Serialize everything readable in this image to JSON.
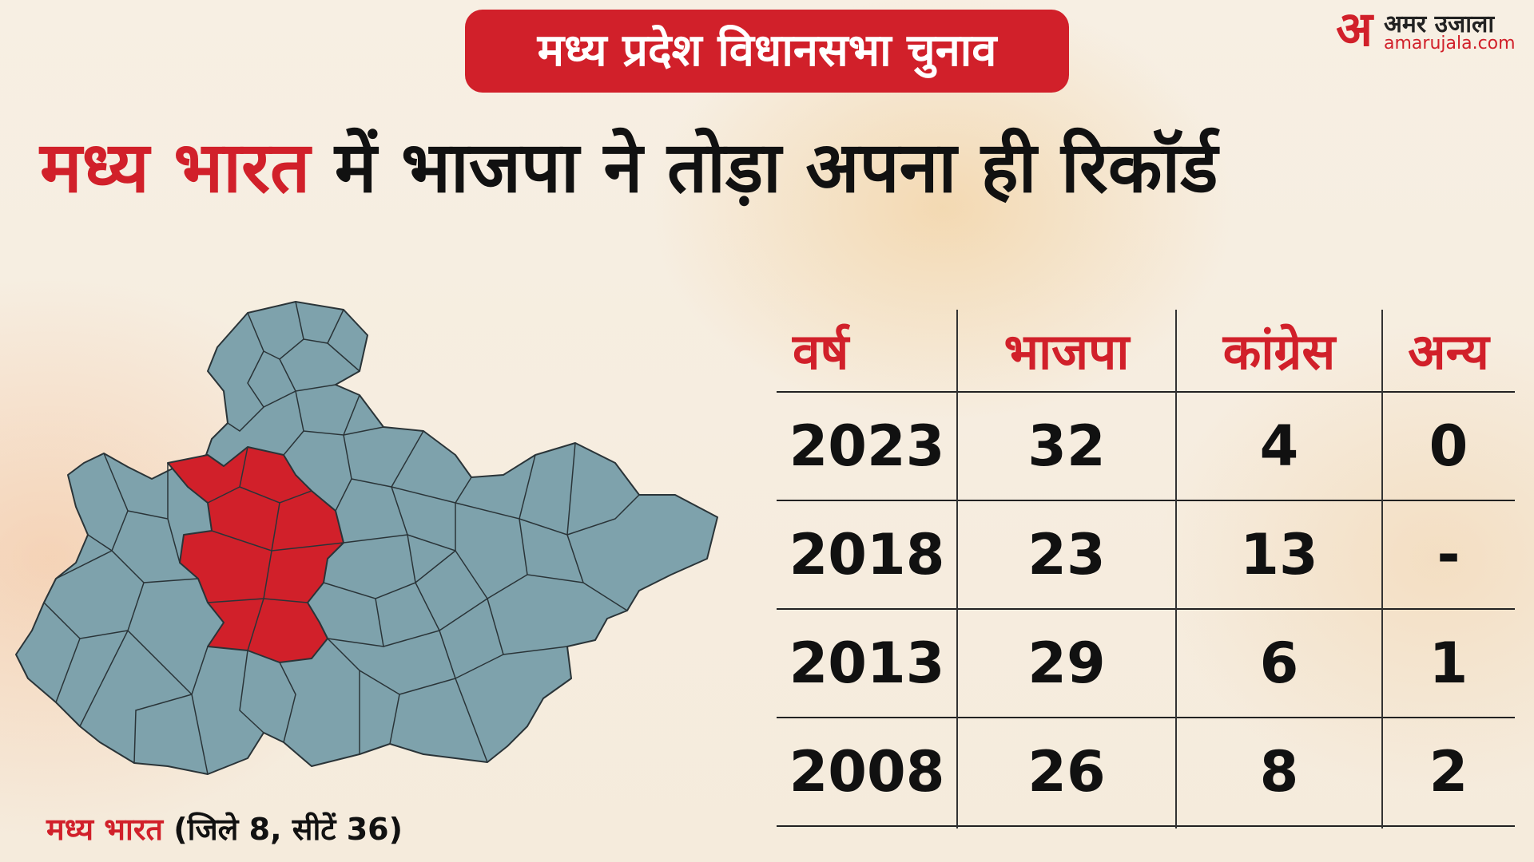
{
  "tag_title": "मध्य प्रदेश विधानसभा चुनाव",
  "logo": {
    "mark": "अ",
    "brand": "अमर उजाला",
    "url": "amarujala.com"
  },
  "headline": {
    "highlight": "मध्य भारत",
    "rest": " में भाजपा ने तोड़ा अपना ही रिकॉर्ड"
  },
  "colors": {
    "accent": "#d1202a",
    "map_other": "#7ea2ac",
    "map_region": "#d1202a",
    "background": "#f6eddf"
  },
  "caption": {
    "highlight": "मध्य भारत",
    "rest": " (जिले 8, सीटें 36)"
  },
  "table": {
    "headers": [
      "वर्ष",
      "भाजपा",
      "कांग्रेस",
      "अन्य"
    ],
    "rows": [
      [
        "2023",
        "32",
        "4",
        "0"
      ],
      [
        "2018",
        "23",
        "13",
        "-"
      ],
      [
        "2013",
        "29",
        "6",
        "1"
      ],
      [
        "2008",
        "26",
        "8",
        "2"
      ]
    ]
  }
}
